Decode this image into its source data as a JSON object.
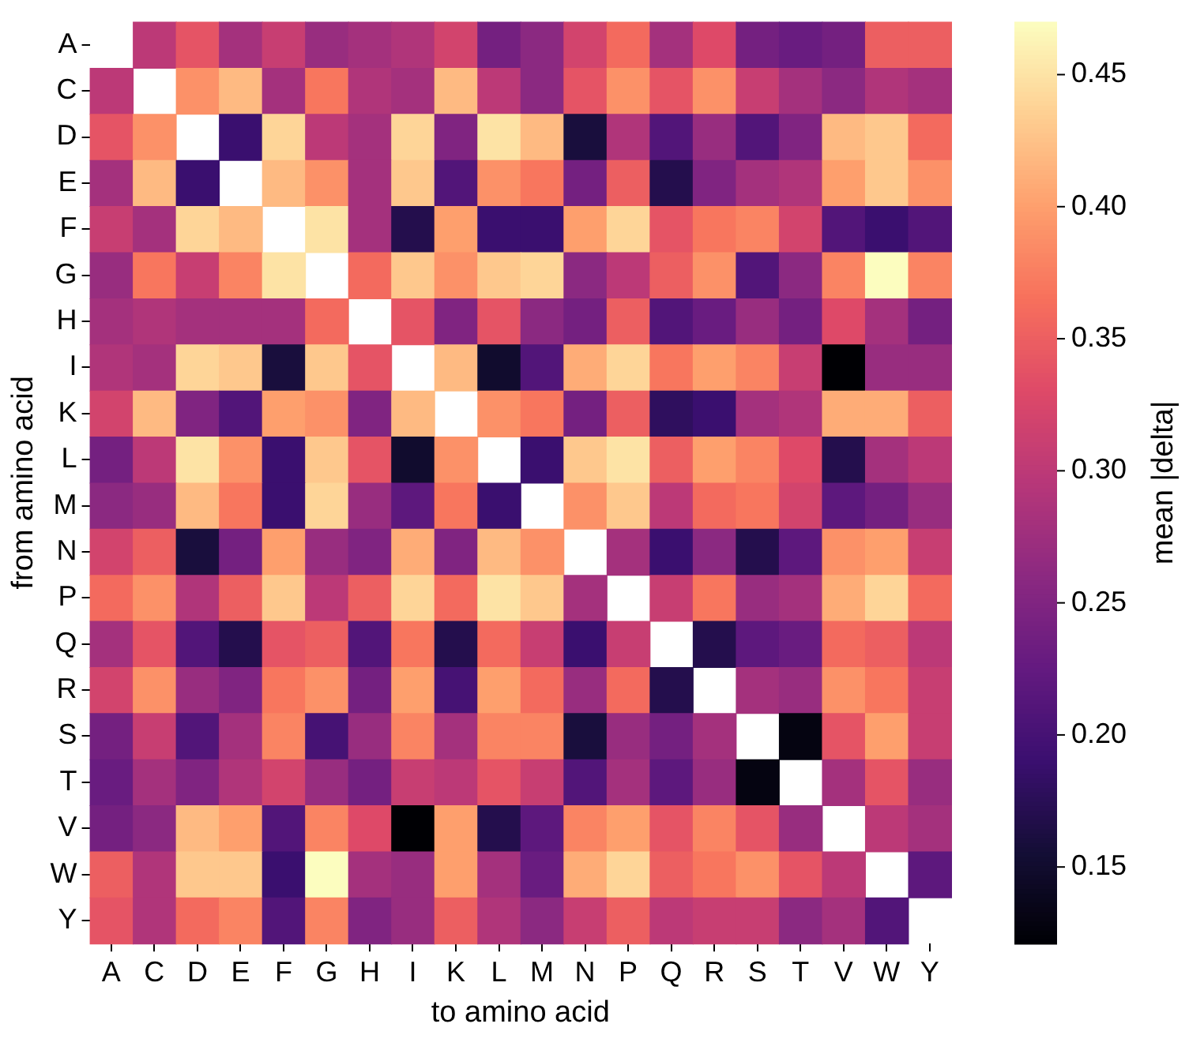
{
  "chart_data": {
    "type": "heatmap",
    "xlabel": "to amino acid",
    "ylabel": "from amino acid",
    "clabel": "mean |delta|",
    "categories": [
      "A",
      "C",
      "D",
      "E",
      "F",
      "G",
      "H",
      "I",
      "K",
      "L",
      "M",
      "N",
      "P",
      "Q",
      "R",
      "S",
      "T",
      "V",
      "W",
      "Y"
    ],
    "y_categories": [
      "A",
      "C",
      "D",
      "E",
      "F",
      "G",
      "H",
      "I",
      "K",
      "L",
      "M",
      "N",
      "P",
      "Q",
      "R",
      "S",
      "T",
      "V",
      "W",
      "Y"
    ],
    "clim": [
      0.121,
      0.47
    ],
    "cticks": [
      {
        "value": 0.15,
        "label": "0.15"
      },
      {
        "value": 0.2,
        "label": "0.20"
      },
      {
        "value": 0.25,
        "label": "0.25"
      },
      {
        "value": 0.3,
        "label": "0.30"
      },
      {
        "value": 0.35,
        "label": "0.35"
      },
      {
        "value": 0.4,
        "label": "0.40"
      },
      {
        "value": 0.45,
        "label": "0.45"
      }
    ],
    "cells": [
      [
        null,
        0.3,
        0.34,
        0.28,
        0.31,
        0.27,
        0.28,
        0.29,
        0.32,
        0.24,
        0.26,
        0.32,
        0.36,
        0.28,
        0.33,
        0.24,
        0.23,
        0.24,
        0.35,
        0.35
      ],
      [
        0.3,
        null,
        0.39,
        0.42,
        0.28,
        0.37,
        0.29,
        0.28,
        0.42,
        0.3,
        0.26,
        0.34,
        0.39,
        0.34,
        0.39,
        0.31,
        0.28,
        0.26,
        0.29,
        0.28
      ],
      [
        0.34,
        0.39,
        null,
        0.19,
        0.44,
        0.3,
        0.28,
        0.44,
        0.25,
        0.45,
        0.42,
        0.16,
        0.29,
        0.21,
        0.27,
        0.21,
        0.25,
        0.42,
        0.43,
        0.36
      ],
      [
        0.28,
        0.42,
        0.19,
        null,
        0.42,
        0.39,
        0.28,
        0.43,
        0.21,
        0.39,
        0.37,
        0.24,
        0.35,
        0.17,
        0.25,
        0.28,
        0.29,
        0.4,
        0.43,
        0.39
      ],
      [
        0.31,
        0.28,
        0.44,
        0.42,
        null,
        0.45,
        0.28,
        0.17,
        0.4,
        0.19,
        0.19,
        0.4,
        0.44,
        0.34,
        0.37,
        0.38,
        0.32,
        0.21,
        0.19,
        0.21
      ],
      [
        0.27,
        0.37,
        0.31,
        0.38,
        0.45,
        null,
        0.36,
        0.43,
        0.39,
        0.43,
        0.44,
        0.26,
        0.3,
        0.35,
        0.39,
        0.21,
        0.26,
        0.38,
        0.47,
        0.38
      ],
      [
        0.28,
        0.29,
        0.28,
        0.28,
        0.28,
        0.36,
        null,
        0.34,
        0.25,
        0.34,
        0.26,
        0.24,
        0.35,
        0.21,
        0.23,
        0.27,
        0.24,
        0.33,
        0.28,
        0.24
      ],
      [
        0.29,
        0.28,
        0.44,
        0.43,
        0.16,
        0.43,
        0.34,
        null,
        0.42,
        0.15,
        0.21,
        0.41,
        0.44,
        0.37,
        0.4,
        0.38,
        0.31,
        0.12,
        0.27,
        0.27
      ],
      [
        0.32,
        0.42,
        0.25,
        0.21,
        0.4,
        0.39,
        0.25,
        0.42,
        null,
        0.39,
        0.37,
        0.24,
        0.35,
        0.18,
        0.19,
        0.28,
        0.29,
        0.41,
        0.41,
        0.35
      ],
      [
        0.24,
        0.3,
        0.45,
        0.39,
        0.19,
        0.43,
        0.34,
        0.15,
        0.39,
        null,
        0.19,
        0.43,
        0.45,
        0.35,
        0.4,
        0.38,
        0.33,
        0.17,
        0.28,
        0.3
      ],
      [
        0.26,
        0.27,
        0.42,
        0.37,
        0.19,
        0.44,
        0.27,
        0.22,
        0.37,
        0.19,
        null,
        0.39,
        0.43,
        0.3,
        0.36,
        0.37,
        0.32,
        0.22,
        0.24,
        0.27
      ],
      [
        0.32,
        0.35,
        0.16,
        0.24,
        0.4,
        0.27,
        0.25,
        0.41,
        0.25,
        0.42,
        0.39,
        null,
        0.28,
        0.19,
        0.26,
        0.17,
        0.22,
        0.39,
        0.4,
        0.31
      ],
      [
        0.36,
        0.39,
        0.29,
        0.35,
        0.43,
        0.3,
        0.35,
        0.44,
        0.36,
        0.45,
        0.43,
        0.28,
        null,
        0.31,
        0.37,
        0.27,
        0.28,
        0.41,
        0.44,
        0.36
      ],
      [
        0.28,
        0.34,
        0.21,
        0.17,
        0.34,
        0.35,
        0.21,
        0.37,
        0.17,
        0.36,
        0.31,
        0.19,
        0.31,
        null,
        0.17,
        0.22,
        0.23,
        0.36,
        0.35,
        0.3
      ],
      [
        0.32,
        0.39,
        0.27,
        0.25,
        0.37,
        0.39,
        0.24,
        0.4,
        0.2,
        0.4,
        0.36,
        0.27,
        0.36,
        0.17,
        null,
        0.28,
        0.27,
        0.39,
        0.37,
        0.31
      ],
      [
        0.24,
        0.31,
        0.21,
        0.28,
        0.38,
        0.2,
        0.27,
        0.38,
        0.28,
        0.38,
        0.38,
        0.16,
        0.27,
        0.24,
        0.28,
        null,
        0.13,
        0.34,
        0.4,
        0.31
      ],
      [
        0.23,
        0.28,
        0.25,
        0.29,
        0.32,
        0.27,
        0.24,
        0.31,
        0.3,
        0.34,
        0.31,
        0.21,
        0.28,
        0.22,
        0.27,
        0.13,
        null,
        0.28,
        0.34,
        0.27
      ],
      [
        0.24,
        0.26,
        0.42,
        0.4,
        0.21,
        0.38,
        0.33,
        0.12,
        0.4,
        0.17,
        0.22,
        0.38,
        0.4,
        0.34,
        0.38,
        0.34,
        0.27,
        null,
        0.3,
        0.28
      ],
      [
        0.35,
        0.29,
        0.43,
        0.43,
        0.19,
        0.47,
        0.28,
        0.27,
        0.4,
        0.28,
        0.23,
        0.41,
        0.44,
        0.35,
        0.37,
        0.39,
        0.34,
        0.3,
        null,
        0.22
      ],
      [
        0.34,
        0.29,
        0.36,
        0.38,
        0.21,
        0.38,
        0.25,
        0.27,
        0.35,
        0.29,
        0.26,
        0.31,
        0.35,
        0.3,
        0.31,
        0.31,
        0.26,
        0.28,
        0.21,
        null
      ]
    ]
  }
}
